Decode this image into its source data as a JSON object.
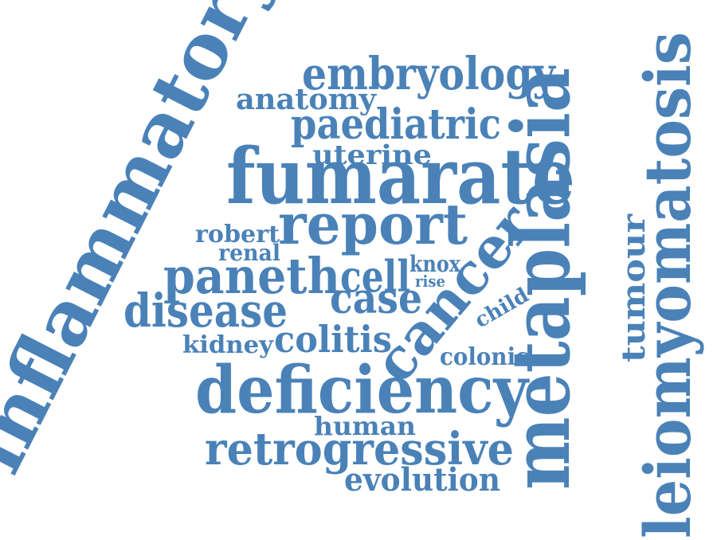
{
  "style": {
    "word_color": "#4a82b8",
    "background": "#ffffff"
  },
  "words": {
    "inflammatory": "inflammatory",
    "embryology": "embryology",
    "anatomy": "anatomy",
    "paediatric": "paediatric",
    "uterine": "uterine",
    "fumarate": "fumarate",
    "report": "report",
    "robert": "robert",
    "renal": "renal",
    "paneth": "paneth",
    "cell": "cell",
    "knox": "knox",
    "rise": "rise",
    "case": "case",
    "disease": "disease",
    "child": "child",
    "kidney": "kidney",
    "colitis": "colitis",
    "cancer": "cancer",
    "colonic": "colonic",
    "deficiency": "deficiency",
    "human": "human",
    "retrogressive": "retrogressive",
    "evolution": "evolution",
    "metaplasia": "metaplasia",
    "tumour": "tumour",
    "leiomyomatosis": "leiomyomatosis"
  }
}
